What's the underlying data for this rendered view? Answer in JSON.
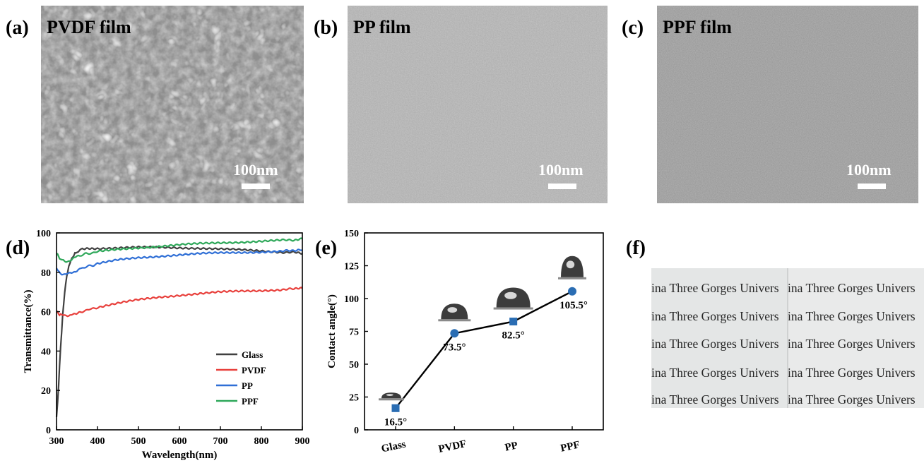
{
  "panels": {
    "a": {
      "label": "(a)",
      "title": "PVDF film",
      "scale": "100nm"
    },
    "b": {
      "label": "(b)",
      "title": "PP film",
      "scale": "100nm"
    },
    "c": {
      "label": "(c)",
      "title": "PPF film",
      "scale": "100nm"
    },
    "d": {
      "label": "(d)"
    },
    "e": {
      "label": "(e)"
    },
    "f": {
      "label": "(f)",
      "photo_text": "ina Three Gorges Univers"
    }
  },
  "chart_data": [
    {
      "type": "line",
      "xlabel": "Wavelength(nm)",
      "ylabel": "Transmittance(%)",
      "xlim": [
        300,
        900
      ],
      "ylim": [
        0,
        100
      ],
      "xticks": [
        300,
        400,
        500,
        600,
        700,
        800,
        900
      ],
      "yticks": [
        0,
        20,
        40,
        60,
        80,
        100
      ],
      "legend_position": "lower-right",
      "series": [
        {
          "name": "Glass",
          "color": "#404040",
          "x": [
            300,
            305,
            310,
            315,
            320,
            325,
            330,
            335,
            340,
            345,
            350,
            360,
            380,
            400,
            450,
            500,
            550,
            600,
            650,
            700,
            750,
            800,
            850,
            880,
            900
          ],
          "y": [
            6,
            22,
            42,
            58,
            70,
            78,
            83,
            86,
            88,
            89.5,
            90.5,
            91.5,
            92,
            92.2,
            92.4,
            92.6,
            92.6,
            92.5,
            92.3,
            91.8,
            91.3,
            90.8,
            90.3,
            90,
            89.6
          ]
        },
        {
          "name": "PVDF",
          "color": "#e8403c",
          "x": [
            300,
            305,
            310,
            320,
            330,
            340,
            360,
            400,
            450,
            500,
            550,
            600,
            650,
            700,
            750,
            800,
            850,
            880,
            900
          ],
          "y": [
            60,
            59,
            58.3,
            58,
            58.2,
            58.8,
            60,
            62.2,
            64.2,
            66,
            67.4,
            68.4,
            69.2,
            69.9,
            70.4,
            70.8,
            71.2,
            71.5,
            71.8
          ]
        },
        {
          "name": "PP",
          "color": "#2f6fd6",
          "x": [
            300,
            305,
            310,
            320,
            330,
            340,
            350,
            360,
            400,
            450,
            500,
            550,
            600,
            650,
            700,
            750,
            800,
            850,
            880,
            900
          ],
          "y": [
            82,
            80.5,
            79.5,
            79,
            79.2,
            80,
            81,
            82,
            84.3,
            86.2,
            87.4,
            88.2,
            88.9,
            89.4,
            89.8,
            90.1,
            90.4,
            90.7,
            91,
            91.3
          ]
        },
        {
          "name": "PPF",
          "color": "#2fa85a",
          "x": [
            300,
            305,
            310,
            320,
            330,
            340,
            350,
            360,
            400,
            450,
            500,
            550,
            600,
            650,
            700,
            750,
            800,
            850,
            880,
            900
          ],
          "y": [
            90,
            88,
            86.5,
            85.5,
            85.8,
            86.8,
            88,
            88.8,
            90.4,
            91.6,
            92.5,
            93.2,
            93.9,
            94.5,
            95,
            95.4,
            95.8,
            96.2,
            96.5,
            97
          ]
        }
      ]
    },
    {
      "type": "line",
      "xlabel": "",
      "ylabel": "Contact angle(°)",
      "categories": [
        "Glass",
        "PVDF",
        "PP",
        "PPF"
      ],
      "values": [
        16.5,
        73.5,
        82.5,
        105.5
      ],
      "labels": [
        "16.5°",
        "73.5°",
        "82.5°",
        "105.5°"
      ],
      "markers": [
        "square",
        "circle",
        "square",
        "circle"
      ],
      "ylim": [
        0,
        150
      ],
      "yticks": [
        0,
        25,
        50,
        75,
        100,
        125,
        150
      ],
      "marker_color": "#2a6db3"
    }
  ]
}
